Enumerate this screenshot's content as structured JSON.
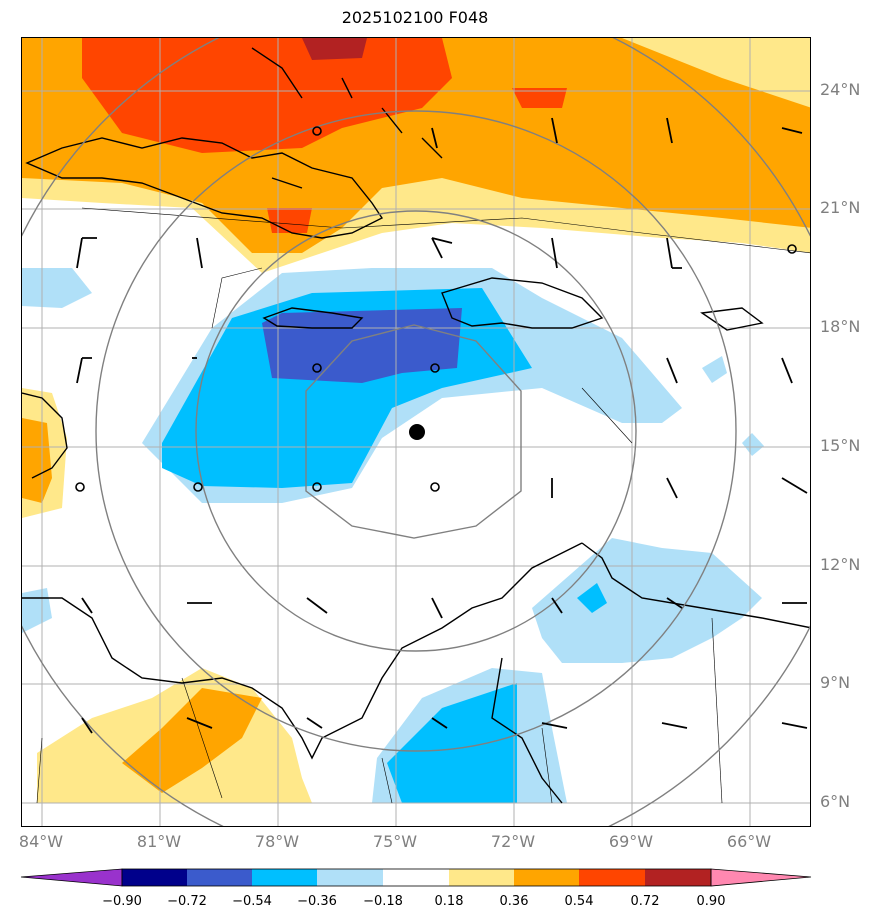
{
  "title": "2025102100 F048",
  "lat_labels": [
    "24°N",
    "21°N",
    "18°N",
    "15°N",
    "12°N",
    "9°N",
    "6°N"
  ],
  "lon_labels": [
    "84°W",
    "81°W",
    "78°W",
    "75°W",
    "72°W",
    "69°W",
    "66°W"
  ],
  "colorbar": {
    "ticks": [
      "−0.90",
      "−0.72",
      "−0.54",
      "−0.36",
      "−0.18",
      "0.18",
      "0.36",
      "0.54",
      "0.72",
      "0.90"
    ],
    "colors": [
      "#9932cc",
      "#00008b",
      "#3b5bcc",
      "#00bfff",
      "#b0e0f8",
      "#ffffff",
      "#ffe88a",
      "#ffa500",
      "#ff4500",
      "#b22222",
      "#ff88b0"
    ]
  },
  "colors": {
    "grid": "#b0b0b0",
    "coast": "#000000",
    "range_rings": "#808080"
  },
  "center_marker": "storm-center-dot"
}
